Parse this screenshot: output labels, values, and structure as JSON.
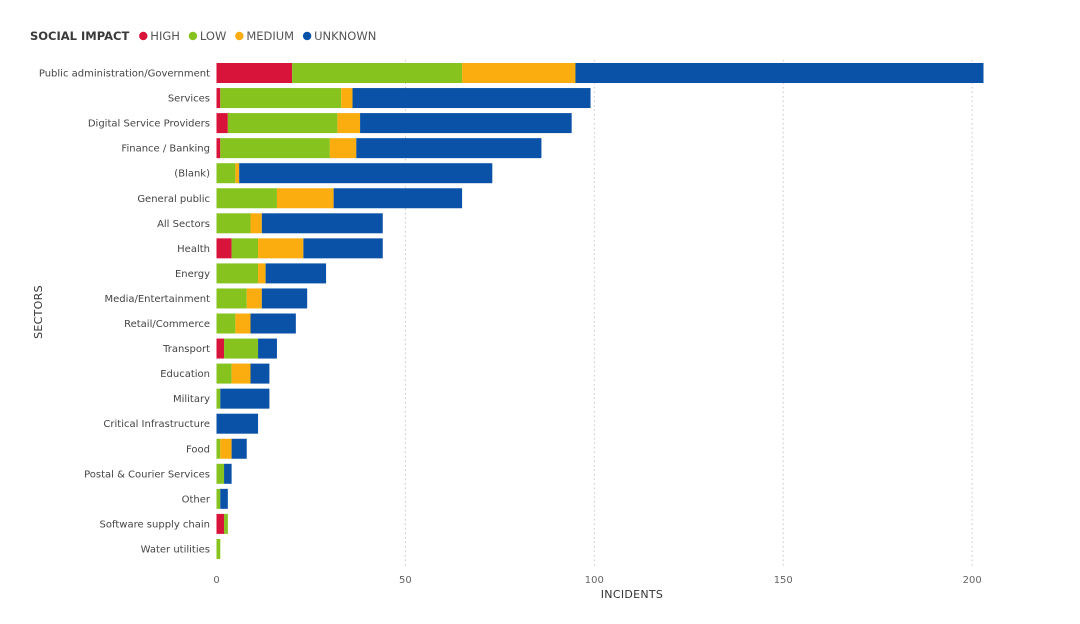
{
  "chart_data": {
    "type": "bar",
    "orientation": "horizontal",
    "stacked": true,
    "title": "",
    "xlabel": "INCIDENTS",
    "ylabel": "SECTORS",
    "legend": {
      "title": "SOCIAL IMPACT",
      "placement": "top-left"
    },
    "xlim": [
      0,
      203
    ],
    "xticks": [
      0,
      50,
      100,
      150,
      200
    ],
    "grid": "vertical-dotted",
    "categories": [
      "Public administration/Government",
      "Services",
      "Digital Service Providers",
      "Finance / Banking",
      "(Blank)",
      "General public",
      "All Sectors",
      "Health",
      "Energy",
      "Media/Entertainment",
      "Retail/Commerce",
      "Transport",
      "Education",
      "Military",
      "Critical Infrastructure",
      "Food",
      "Postal & Courier Services",
      "Other",
      "Software supply chain",
      "Water utilities"
    ],
    "series": [
      {
        "name": "HIGH",
        "color": "#d9143b",
        "values": [
          20,
          1,
          3,
          1,
          0,
          0,
          0,
          4,
          0,
          0,
          0,
          2,
          0,
          0,
          0,
          0,
          0,
          0,
          2,
          0
        ]
      },
      {
        "name": "LOW",
        "color": "#86c31f",
        "values": [
          45,
          32,
          29,
          29,
          5,
          16,
          9,
          7,
          11,
          8,
          5,
          9,
          4,
          1,
          0,
          1,
          2,
          1,
          1,
          1
        ]
      },
      {
        "name": "MEDIUM",
        "color": "#fbad0f",
        "values": [
          30,
          3,
          6,
          7,
          1,
          15,
          3,
          12,
          2,
          4,
          4,
          0,
          5,
          0,
          0,
          3,
          0,
          0,
          0,
          0
        ]
      },
      {
        "name": "UNKNOWN",
        "color": "#0a52a8",
        "values": [
          108,
          63,
          56,
          49,
          67,
          34,
          32,
          21,
          16,
          12,
          12,
          5,
          5,
          13,
          11,
          4,
          2,
          2,
          0,
          0
        ]
      }
    ]
  }
}
